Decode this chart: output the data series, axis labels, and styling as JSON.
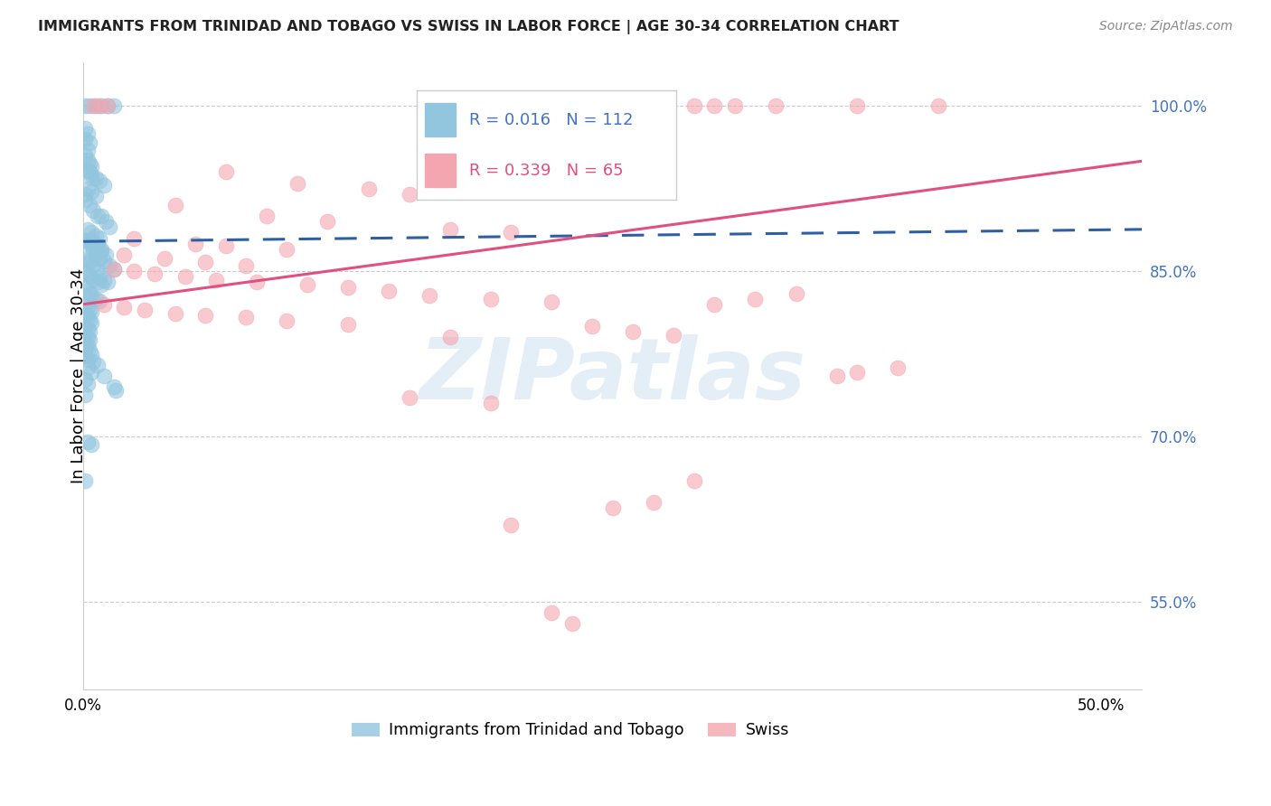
{
  "title": "IMMIGRANTS FROM TRINIDAD AND TOBAGO VS SWISS IN LABOR FORCE | AGE 30-34 CORRELATION CHART",
  "source": "Source: ZipAtlas.com",
  "ylabel": "In Labor Force | Age 30-34",
  "ytick_labels": [
    "100.0%",
    "85.0%",
    "70.0%",
    "55.0%"
  ],
  "ytick_values": [
    1.0,
    0.85,
    0.7,
    0.55
  ],
  "blue_r": "0.016",
  "blue_n": "112",
  "pink_r": "0.339",
  "pink_n": "65",
  "blue_color": "#92c5de",
  "pink_color": "#f4a6b0",
  "trendline_blue_color": "#2e5fa3",
  "trendline_pink_color": "#e05080",
  "watermark": "ZIPatlas",
  "blue_scatter": [
    [
      0.001,
      1.0
    ],
    [
      0.003,
      1.0
    ],
    [
      0.006,
      1.0
    ],
    [
      0.009,
      1.0
    ],
    [
      0.012,
      1.0
    ],
    [
      0.015,
      1.0
    ],
    [
      0.002,
      0.96
    ],
    [
      0.003,
      0.94
    ],
    [
      0.004,
      0.935
    ],
    [
      0.002,
      0.925
    ],
    [
      0.001,
      0.92
    ],
    [
      0.001,
      0.915
    ],
    [
      0.003,
      0.91
    ],
    [
      0.005,
      0.905
    ],
    [
      0.007,
      0.9
    ],
    [
      0.009,
      0.9
    ],
    [
      0.011,
      0.895
    ],
    [
      0.013,
      0.89
    ],
    [
      0.002,
      0.888
    ],
    [
      0.004,
      0.885
    ],
    [
      0.006,
      0.882
    ],
    [
      0.008,
      0.88
    ],
    [
      0.001,
      0.878
    ],
    [
      0.003,
      0.875
    ],
    [
      0.005,
      0.873
    ],
    [
      0.007,
      0.87
    ],
    [
      0.009,
      0.868
    ],
    [
      0.011,
      0.865
    ],
    [
      0.001,
      0.862
    ],
    [
      0.002,
      0.86
    ],
    [
      0.003,
      0.858
    ],
    [
      0.005,
      0.855
    ],
    [
      0.007,
      0.852
    ],
    [
      0.001,
      0.85
    ],
    [
      0.002,
      0.848
    ],
    [
      0.003,
      0.845
    ],
    [
      0.005,
      0.843
    ],
    [
      0.007,
      0.84
    ],
    [
      0.009,
      0.838
    ],
    [
      0.001,
      0.835
    ],
    [
      0.002,
      0.832
    ],
    [
      0.003,
      0.83
    ],
    [
      0.004,
      0.828
    ],
    [
      0.006,
      0.825
    ],
    [
      0.008,
      0.823
    ],
    [
      0.001,
      0.82
    ],
    [
      0.002,
      0.818
    ],
    [
      0.003,
      0.815
    ],
    [
      0.004,
      0.813
    ],
    [
      0.001,
      0.81
    ],
    [
      0.002,
      0.808
    ],
    [
      0.003,
      0.805
    ],
    [
      0.004,
      0.803
    ],
    [
      0.001,
      0.8
    ],
    [
      0.002,
      0.798
    ],
    [
      0.003,
      0.795
    ],
    [
      0.001,
      0.793
    ],
    [
      0.002,
      0.79
    ],
    [
      0.003,
      0.788
    ],
    [
      0.001,
      0.785
    ],
    [
      0.002,
      0.783
    ],
    [
      0.001,
      0.78
    ],
    [
      0.003,
      0.778
    ],
    [
      0.004,
      0.775
    ],
    [
      0.001,
      0.773
    ],
    [
      0.002,
      0.77
    ],
    [
      0.005,
      0.768
    ],
    [
      0.007,
      0.765
    ],
    [
      0.002,
      0.762
    ],
    [
      0.004,
      0.758
    ],
    [
      0.01,
      0.755
    ],
    [
      0.001,
      0.752
    ],
    [
      0.002,
      0.748
    ],
    [
      0.015,
      0.745
    ],
    [
      0.016,
      0.742
    ],
    [
      0.001,
      0.738
    ],
    [
      0.002,
      0.695
    ],
    [
      0.004,
      0.693
    ],
    [
      0.001,
      0.66
    ],
    [
      0.008,
      0.845
    ],
    [
      0.01,
      0.842
    ],
    [
      0.012,
      0.84
    ],
    [
      0.005,
      0.87
    ],
    [
      0.006,
      0.865
    ],
    [
      0.008,
      0.862
    ],
    [
      0.01,
      0.859
    ],
    [
      0.013,
      0.855
    ],
    [
      0.015,
      0.852
    ],
    [
      0.003,
      0.878
    ],
    [
      0.005,
      0.876
    ],
    [
      0.007,
      0.873
    ],
    [
      0.009,
      0.87
    ],
    [
      0.002,
      0.942
    ],
    [
      0.004,
      0.938
    ],
    [
      0.006,
      0.935
    ],
    [
      0.008,
      0.932
    ],
    [
      0.01,
      0.928
    ],
    [
      0.004,
      0.922
    ],
    [
      0.006,
      0.918
    ],
    [
      0.001,
      0.955
    ],
    [
      0.002,
      0.951
    ],
    [
      0.003,
      0.948
    ],
    [
      0.004,
      0.945
    ],
    [
      0.001,
      0.97
    ],
    [
      0.003,
      0.967
    ],
    [
      0.001,
      0.98
    ],
    [
      0.002,
      0.975
    ]
  ],
  "pink_scatter": [
    [
      0.005,
      1.0
    ],
    [
      0.008,
      1.0
    ],
    [
      0.012,
      1.0
    ],
    [
      0.28,
      1.0
    ],
    [
      0.3,
      1.0
    ],
    [
      0.31,
      1.0
    ],
    [
      0.32,
      1.0
    ],
    [
      0.34,
      1.0
    ],
    [
      0.38,
      1.0
    ],
    [
      0.42,
      1.0
    ],
    [
      0.07,
      0.94
    ],
    [
      0.105,
      0.93
    ],
    [
      0.14,
      0.925
    ],
    [
      0.16,
      0.92
    ],
    [
      0.045,
      0.91
    ],
    [
      0.09,
      0.9
    ],
    [
      0.12,
      0.895
    ],
    [
      0.18,
      0.888
    ],
    [
      0.21,
      0.885
    ],
    [
      0.025,
      0.88
    ],
    [
      0.055,
      0.875
    ],
    [
      0.07,
      0.873
    ],
    [
      0.1,
      0.87
    ],
    [
      0.02,
      0.865
    ],
    [
      0.04,
      0.862
    ],
    [
      0.06,
      0.858
    ],
    [
      0.08,
      0.855
    ],
    [
      0.015,
      0.852
    ],
    [
      0.025,
      0.85
    ],
    [
      0.035,
      0.848
    ],
    [
      0.05,
      0.845
    ],
    [
      0.065,
      0.842
    ],
    [
      0.085,
      0.84
    ],
    [
      0.11,
      0.838
    ],
    [
      0.13,
      0.835
    ],
    [
      0.15,
      0.832
    ],
    [
      0.17,
      0.828
    ],
    [
      0.2,
      0.825
    ],
    [
      0.23,
      0.822
    ],
    [
      0.01,
      0.82
    ],
    [
      0.02,
      0.817
    ],
    [
      0.03,
      0.815
    ],
    [
      0.045,
      0.812
    ],
    [
      0.06,
      0.81
    ],
    [
      0.08,
      0.808
    ],
    [
      0.1,
      0.805
    ],
    [
      0.13,
      0.802
    ],
    [
      0.25,
      0.8
    ],
    [
      0.27,
      0.795
    ],
    [
      0.29,
      0.792
    ],
    [
      0.31,
      0.82
    ],
    [
      0.33,
      0.825
    ],
    [
      0.35,
      0.83
    ],
    [
      0.18,
      0.79
    ],
    [
      0.16,
      0.735
    ],
    [
      0.2,
      0.73
    ],
    [
      0.3,
      0.66
    ],
    [
      0.28,
      0.64
    ],
    [
      0.26,
      0.635
    ],
    [
      0.21,
      0.62
    ],
    [
      0.23,
      0.54
    ],
    [
      0.24,
      0.53
    ],
    [
      0.37,
      0.755
    ],
    [
      0.38,
      0.758
    ],
    [
      0.4,
      0.762
    ]
  ],
  "xlim": [
    0.0,
    0.52
  ],
  "ylim": [
    0.47,
    1.04
  ],
  "blue_line_x": [
    0.0,
    0.52
  ],
  "blue_line_y": [
    0.877,
    0.888
  ],
  "pink_line_x": [
    0.0,
    0.52
  ],
  "pink_line_y": [
    0.82,
    0.95
  ]
}
